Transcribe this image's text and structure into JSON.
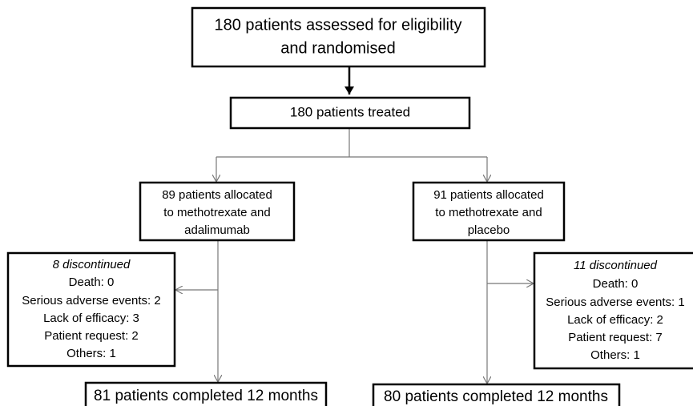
{
  "nodes": [
    {
      "lines": [
        "180 patients assessed for eligibility",
        "and randomised"
      ]
    },
    {
      "lines": [
        "180 patients treated"
      ]
    },
    {
      "lines": [
        "89 patients allocated",
        "to methotrexate and",
        "adalimumab"
      ]
    },
    {
      "lines": [
        "91 patients allocated",
        "to methotrexate and",
        "placebo"
      ]
    },
    {
      "title": "8 discontinued",
      "lines": [
        "Death: 0",
        "Serious adverse events: 2",
        "Lack of efficacy: 3",
        "Patient request: 2",
        "Others: 1"
      ]
    },
    {
      "title": "11 discontinued",
      "lines": [
        "Death: 0",
        "Serious adverse events: 1",
        "Lack of efficacy: 2",
        "Patient request: 7",
        "Others: 1"
      ]
    },
    {
      "lines": [
        "81 patients completed 12 months"
      ]
    },
    {
      "lines": [
        "80 patients completed 12 months"
      ]
    }
  ]
}
